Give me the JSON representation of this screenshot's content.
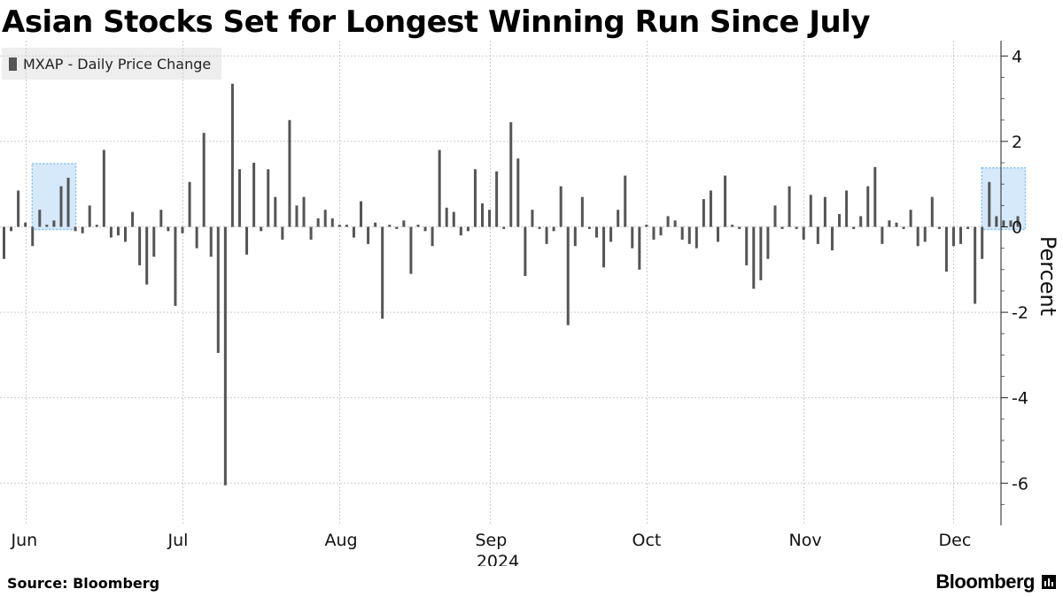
{
  "header": {
    "title": "Asian Stocks Set for Longest Winning Run Since July"
  },
  "legend": {
    "label": "MXAP - Daily Price Change"
  },
  "footer": {
    "source": "Source: Bloomberg",
    "brand": "Bloomberg"
  },
  "colors": {
    "bar": "#555555",
    "highlight_fill": "#d6e9fb",
    "highlight_border": "#7fbfe8",
    "grid": "#cccccc",
    "legend_bg": "#eeeeee"
  },
  "chart_data": {
    "type": "bar",
    "title": "Asian Stocks Set for Longest Winning Run Since July",
    "ylabel": "Percent",
    "ylim": [
      -7,
      4.3
    ],
    "yticks": [
      4,
      2,
      0,
      -2,
      -4,
      -6
    ],
    "grid": true,
    "legend_position": "top-left",
    "year_label": "2024",
    "month_labels": [
      "Jun",
      "Jul",
      "Aug",
      "Sep",
      "Oct",
      "Nov",
      "Dec"
    ],
    "series": [
      {
        "name": "MXAP - Daily Price Change",
        "values": [
          -0.75,
          -0.1,
          0.85,
          0.1,
          -0.45,
          0.4,
          0.05,
          0.15,
          0.95,
          1.15,
          -0.1,
          -0.15,
          0.5,
          0.05,
          1.8,
          -0.25,
          -0.2,
          -0.35,
          0.35,
          -0.9,
          -1.35,
          -0.7,
          0.4,
          -0.1,
          -1.85,
          -0.15,
          1.05,
          -0.5,
          2.2,
          -0.7,
          -2.95,
          -6.05,
          3.35,
          1.35,
          -0.65,
          1.5,
          -0.1,
          1.35,
          0.7,
          -0.3,
          2.5,
          0.5,
          0.7,
          -0.3,
          0.2,
          0.4,
          0.2,
          0.05,
          0.05,
          -0.25,
          0.6,
          -0.4,
          0.1,
          -2.15,
          0.05,
          -0.05,
          0.15,
          -1.1,
          0.05,
          -0.1,
          -0.45,
          1.8,
          0.45,
          0.35,
          -0.2,
          -0.1,
          1.35,
          0.55,
          0.4,
          1.3,
          -0.05,
          2.45,
          1.6,
          -1.15,
          0.4,
          -0.05,
          -0.4,
          -0.1,
          0.95,
          -2.3,
          -0.45,
          0.7,
          -0.05,
          -0.25,
          -0.95,
          -0.35,
          0.4,
          1.2,
          -0.5,
          -1.0,
          0.05,
          -0.3,
          -0.2,
          0.25,
          0.15,
          -0.3,
          -0.4,
          -0.5,
          0.65,
          0.85,
          -0.35,
          1.2,
          0.05,
          -0.05,
          -0.9,
          -1.45,
          -1.25,
          -0.75,
          0.5,
          -0.05,
          0.95,
          -0.05,
          -0.3,
          0.75,
          -0.4,
          0.7,
          -0.55,
          0.3,
          0.85,
          -0.05,
          0.25,
          0.95,
          1.4,
          -0.4,
          0.15,
          0.1,
          -0.05,
          0.4,
          -0.45,
          -0.35,
          0.7,
          -0.05,
          -1.05,
          -0.45,
          -0.4,
          -0.05,
          -1.8,
          -0.75,
          1.05,
          0.25,
          0.15,
          0.15,
          0.25
        ]
      }
    ],
    "highlights": [
      {
        "from_index": 5,
        "to_index": 9
      },
      {
        "from_index": 138,
        "to_index": 142
      }
    ]
  }
}
